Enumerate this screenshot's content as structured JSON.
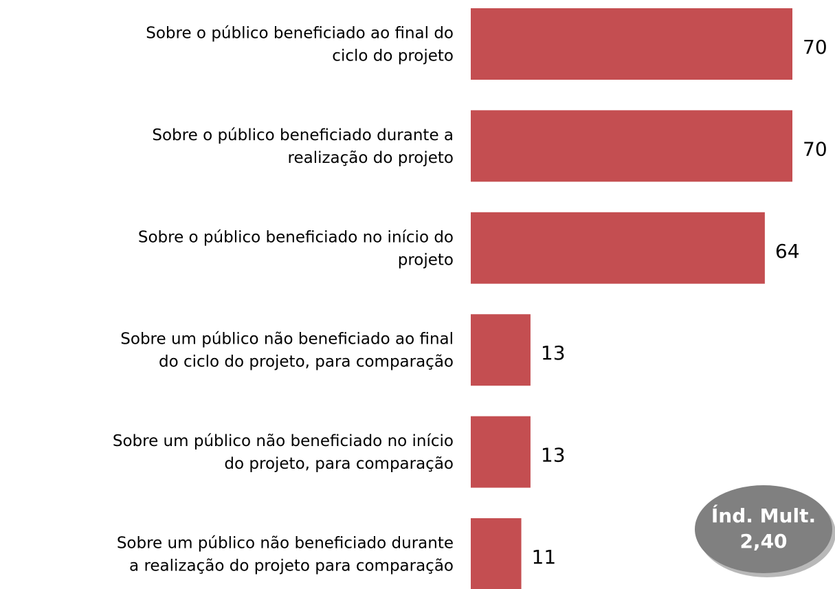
{
  "chart_data": {
    "type": "bar",
    "orientation": "horizontal",
    "categories": [
      [
        "Sobre o público beneficiado ao final do",
        "ciclo do projeto"
      ],
      [
        "Sobre o público beneficiado durante a",
        "realização do projeto"
      ],
      [
        "Sobre o público beneficiado no início do",
        "projeto"
      ],
      [
        "Sobre um público não beneficiado ao final",
        "do ciclo do projeto, para comparação"
      ],
      [
        "Sobre um público não beneficiado no início",
        "do projeto, para comparação"
      ],
      [
        "Sobre um público não beneficiado durante",
        "a realização do projeto para comparação"
      ]
    ],
    "values": [
      70,
      70,
      64,
      13,
      13,
      11
    ],
    "color": "#c44e51",
    "annotation": {
      "title": "Índ. Mult.",
      "text": "2,40"
    }
  }
}
